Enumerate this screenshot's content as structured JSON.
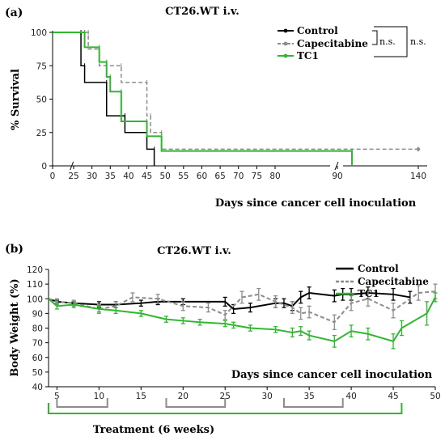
{
  "colors": {
    "control": "#000000",
    "capecitabine": "#8c8c8c",
    "tc1": "#2db82d"
  },
  "chart_data": [
    {
      "type": "line",
      "panel_label": "(a)",
      "title": "CT26.WT i.v.",
      "xlabel": "Days since cancer cell inoculation",
      "ylabel": "% Survival",
      "xlim": [
        0,
        140
      ],
      "ylim": [
        0,
        100
      ],
      "x_break": true,
      "xticks": [
        "0",
        "25",
        "30",
        "35",
        "40",
        "45",
        "50",
        "55",
        "60",
        "65",
        "70",
        "75",
        "80",
        "90",
        "140"
      ],
      "yticks": [
        "0",
        "25",
        "50",
        "75",
        "100"
      ],
      "legend": "top-right",
      "comparisons": [
        "n.s.",
        "n.s."
      ],
      "series": [
        {
          "name": "Control",
          "style": "solid",
          "color": "#000000",
          "steps": [
            [
              0,
              100
            ],
            [
              27,
              75
            ],
            [
              28,
              62.5
            ],
            [
              34,
              37.5
            ],
            [
              39,
              25
            ],
            [
              45,
              12.5
            ],
            [
              47,
              0
            ]
          ]
        },
        {
          "name": "Capecitabine",
          "style": "dashed",
          "color": "#8c8c8c",
          "steps": [
            [
              0,
              100
            ],
            [
              29,
              87.5
            ],
            [
              32,
              75
            ],
            [
              38,
              62.5
            ],
            [
              45,
              37.5
            ],
            [
              46,
              25
            ],
            [
              49,
              12.5
            ],
            [
              140,
              12.5
            ]
          ]
        },
        {
          "name": "TC1",
          "style": "solid",
          "color": "#2db82d",
          "steps": [
            [
              0,
              100
            ],
            [
              28,
              88.9
            ],
            [
              32,
              77.8
            ],
            [
              34,
              66.7
            ],
            [
              35,
              55.6
            ],
            [
              38,
              33.3
            ],
            [
              45,
              22.2
            ],
            [
              49,
              11.1
            ],
            [
              99,
              0
            ]
          ]
        }
      ]
    },
    {
      "type": "line",
      "panel_label": "(b)",
      "title": "CT26.WT i.v.",
      "xlabel": "Days since cancer cell inoculation",
      "ylabel": "Body Weight (%)",
      "xlim": [
        4,
        50
      ],
      "ylim": [
        40,
        120
      ],
      "xticks": [
        "5",
        "10",
        "15",
        "20",
        "25",
        "30",
        "35",
        "40",
        "45",
        "50"
      ],
      "yticks": [
        "40",
        "50",
        "60",
        "70",
        "80",
        "90",
        "100",
        "110",
        "120"
      ],
      "legend": "top-right",
      "treatment_label": "Treatment (6 weeks)",
      "treatment_span": [
        4,
        46
      ],
      "treatment_blocks": [
        [
          5,
          11
        ],
        [
          18,
          25
        ],
        [
          32,
          39
        ]
      ],
      "series": [
        {
          "name": "Control",
          "style": "solid",
          "color": "#000000",
          "x": [
            4,
            5,
            7,
            10,
            12,
            15,
            17,
            20,
            25,
            26,
            28,
            31,
            32,
            33,
            34,
            35,
            38,
            39,
            40,
            42,
            45,
            47
          ],
          "y": [
            100,
            98,
            97,
            96,
            96,
            97,
            98,
            98,
            98,
            93,
            94,
            97,
            97,
            95,
            101,
            104,
            102,
            103,
            103,
            104,
            103,
            101
          ],
          "err": [
            0,
            1,
            1,
            2,
            2,
            2,
            2,
            2,
            3,
            3,
            3,
            3,
            3,
            3,
            4,
            4,
            4,
            4,
            4,
            4,
            4,
            4
          ]
        },
        {
          "name": "Capecitabine",
          "style": "dashed",
          "color": "#8c8c8c",
          "x": [
            4,
            5,
            7,
            10,
            12,
            14,
            17,
            20,
            23,
            25,
            27,
            29,
            31,
            33,
            34,
            35,
            38,
            40,
            42,
            45,
            48,
            50
          ],
          "y": [
            100,
            98,
            97,
            93,
            95,
            101,
            100,
            95,
            94,
            89,
            101,
            103,
            98,
            94,
            90,
            91,
            84,
            97,
            100,
            92,
            104,
            105
          ],
          "err": [
            0,
            2,
            2,
            3,
            3,
            3,
            3,
            3,
            3,
            3,
            4,
            4,
            4,
            4,
            4,
            4,
            5,
            5,
            5,
            5,
            5,
            5
          ]
        },
        {
          "name": "TC1",
          "style": "solid",
          "color": "#2db82d",
          "x": [
            4,
            5,
            7,
            10,
            12,
            15,
            18,
            20,
            22,
            25,
            26,
            28,
            31,
            33,
            34,
            35,
            38,
            40,
            42,
            45,
            46,
            49,
            50
          ],
          "y": [
            100,
            95,
            96,
            93,
            92,
            90,
            86,
            85,
            84,
            83,
            82,
            80,
            79,
            77,
            78,
            75,
            71,
            78,
            76,
            71,
            80,
            90,
            101
          ],
          "err": [
            0,
            2,
            2,
            2,
            2,
            2,
            2,
            2,
            2,
            2,
            2,
            2,
            2,
            3,
            3,
            3,
            4,
            4,
            4,
            5,
            5,
            8,
            3
          ]
        }
      ]
    }
  ]
}
